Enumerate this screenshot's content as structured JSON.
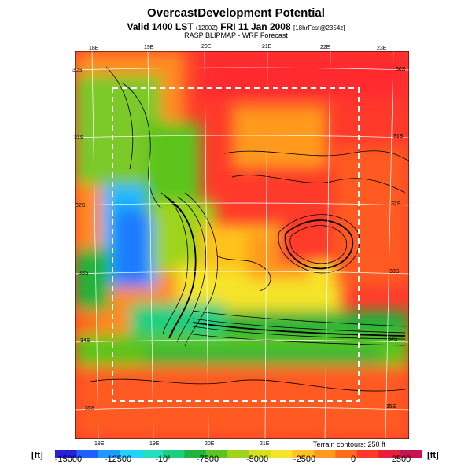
{
  "header": {
    "title": "OvercastDevelopment Potential",
    "valid_line_main": "Valid 1400 LST",
    "valid_line_small": "(1200Z)",
    "valid_line_date": "FRI 11 Jan 2008",
    "valid_line_fcst": "[18hrFcst@2354z]",
    "subtitle": "RASP BLIPMAP - WRF Forecast"
  },
  "map": {
    "top_lon_labels": [
      "18E",
      "19E",
      "20E",
      "21E",
      "22E",
      "23E"
    ],
    "bottom_lon_labels": [
      "18E",
      "19E",
      "20E",
      "21E"
    ],
    "left_lat_labels": [
      "30S",
      "31S",
      "32S",
      "33S",
      "34S",
      "35S"
    ],
    "right_lat_labels": [
      "30S",
      "31S",
      "32S",
      "33S",
      "34S",
      "35S"
    ],
    "terrain_note": "Terrain contours: 250 ft"
  },
  "legend": {
    "unit_left": "[ft]",
    "unit_right": "[ft]",
    "tick_labels": [
      "-15000",
      "-12500",
      "-10¹",
      "-7500",
      "-5000",
      "-2500",
      "0",
      "2500"
    ],
    "colors": [
      "#2a1fd8",
      "#1e5fff",
      "#1a9bff",
      "#1fd2ff",
      "#20e0c0",
      "#1bcf80",
      "#22b33b",
      "#5cc41f",
      "#9fd41b",
      "#d6e11e",
      "#f5e42a",
      "#ffc21f",
      "#ff9a1f",
      "#ff6a1f",
      "#ff3a2b",
      "#e81e3f",
      "#c8144e"
    ]
  }
}
